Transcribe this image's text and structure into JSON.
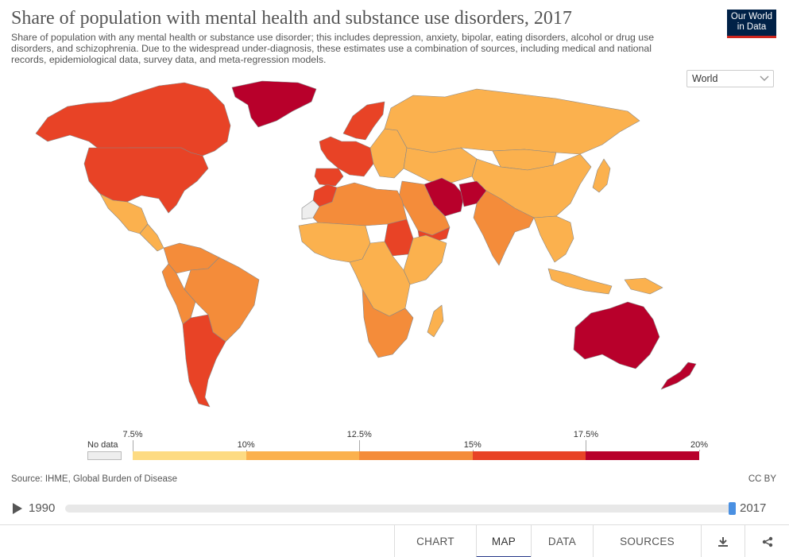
{
  "header": {
    "title": "Share of population with mental health and substance use disorders, 2017",
    "subtitle": "Share of population with any mental health or substance use disorder; this includes depression, anxiety, bipolar, eating disorders, alcohol or drug use disorders, and schizophrenia. Due to the widespread under-diagnosis, these estimates use a combination of sources, including medical and national records, epidemiological data, survey data, and meta-regression models.",
    "logo_line1": "Our World",
    "logo_line2": "in Data"
  },
  "region_select": {
    "selected": "World",
    "icon": "chevron-down-icon"
  },
  "legend": {
    "no_data_label": "No data",
    "bins": [
      {
        "from": 7.5,
        "to": 10,
        "color": "#fddb83"
      },
      {
        "from": 10,
        "to": 12.5,
        "color": "#fbb14e"
      },
      {
        "from": 12.5,
        "to": 15,
        "color": "#f48c3a"
      },
      {
        "from": 15,
        "to": 17.5,
        "color": "#e84326"
      },
      {
        "from": 17.5,
        "to": 20,
        "color": "#b8002b"
      }
    ],
    "ticks": [
      {
        "label": "7.5%",
        "row": "upper"
      },
      {
        "label": "10%",
        "row": "lower"
      },
      {
        "label": "12.5%",
        "row": "upper"
      },
      {
        "label": "15%",
        "row": "lower"
      },
      {
        "label": "17.5%",
        "row": "upper"
      },
      {
        "label": "20%",
        "row": "lower"
      }
    ],
    "no_data_color": "#eeeeee"
  },
  "source": "Source: IHME, Global Burden of Disease",
  "license": "CC BY",
  "timeline": {
    "start_year": "1990",
    "end_year": "2017",
    "selected_year": 2017
  },
  "tabs": [
    {
      "label": "CHART",
      "active": false
    },
    {
      "label": "MAP",
      "active": true
    },
    {
      "label": "DATA",
      "active": false
    },
    {
      "label": "SOURCES",
      "active": false
    }
  ],
  "footer_icons": [
    "download-icon",
    "share-icon"
  ],
  "map_regions": [
    {
      "name": "Greenland",
      "color": "#b8002b"
    },
    {
      "name": "Canada",
      "color": "#e84326"
    },
    {
      "name": "United States",
      "color": "#e84326"
    },
    {
      "name": "Mexico",
      "color": "#fbb14e"
    },
    {
      "name": "Central America",
      "color": "#fbb14e"
    },
    {
      "name": "Northern South America",
      "color": "#f48c3a"
    },
    {
      "name": "Brazil",
      "color": "#f48c3a"
    },
    {
      "name": "Andean South America",
      "color": "#f48c3a"
    },
    {
      "name": "Southern Cone",
      "color": "#e84326"
    },
    {
      "name": "Western Europe",
      "color": "#e84326"
    },
    {
      "name": "Iberia",
      "color": "#e84326"
    },
    {
      "name": "Nordics",
      "color": "#e84326"
    },
    {
      "name": "Eastern Europe",
      "color": "#fbb14e"
    },
    {
      "name": "Russia",
      "color": "#fbb14e"
    },
    {
      "name": "Central Asia",
      "color": "#fbb14e"
    },
    {
      "name": "China",
      "color": "#fbb14e"
    },
    {
      "name": "Mongolia",
      "color": "#fbb14e"
    },
    {
      "name": "Japan",
      "color": "#fbb14e"
    },
    {
      "name": "South Asia",
      "color": "#f48c3a"
    },
    {
      "name": "Iran",
      "color": "#b8002b"
    },
    {
      "name": "Afghanistan",
      "color": "#b8002b"
    },
    {
      "name": "Arabian Peninsula",
      "color": "#f48c3a"
    },
    {
      "name": "Yemen",
      "color": "#e84326"
    },
    {
      "name": "North Africa",
      "color": "#f48c3a"
    },
    {
      "name": "Morocco",
      "color": "#e84326"
    },
    {
      "name": "West Africa",
      "color": "#fbb14e"
    },
    {
      "name": "Sudan",
      "color": "#e84326"
    },
    {
      "name": "East Africa",
      "color": "#fbb14e"
    },
    {
      "name": "Central Africa",
      "color": "#fbb14e"
    },
    {
      "name": "Southern Africa",
      "color": "#f48c3a"
    },
    {
      "name": "Madagascar",
      "color": "#fbb14e"
    },
    {
      "name": "Southeast Asia",
      "color": "#fbb14e"
    },
    {
      "name": "Indonesia",
      "color": "#fbb14e"
    },
    {
      "name": "Papua New Guinea",
      "color": "#fbb14e"
    },
    {
      "name": "Australia",
      "color": "#b8002b"
    },
    {
      "name": "New Zealand",
      "color": "#b8002b"
    },
    {
      "name": "Western Sahara",
      "color": "#eeeeee"
    }
  ]
}
